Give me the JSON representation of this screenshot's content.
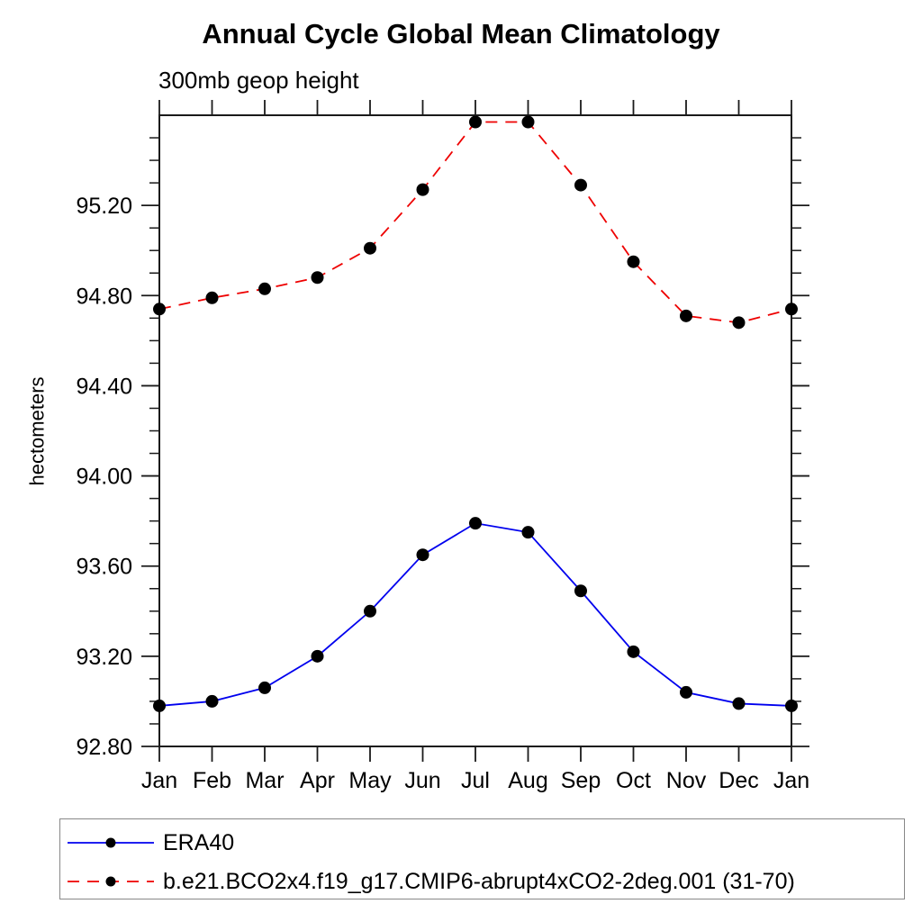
{
  "title": "Annual Cycle Global Mean Climatology",
  "subtitle": "300mb geop height",
  "chart_data": {
    "type": "line",
    "title": "Annual Cycle Global Mean Climatology",
    "subtitle": "300mb geop height",
    "xlabel": "",
    "ylabel": "hectometers",
    "categories": [
      "Jan",
      "Feb",
      "Mar",
      "Apr",
      "May",
      "Jun",
      "Jul",
      "Aug",
      "Sep",
      "Oct",
      "Nov",
      "Dec",
      "Jan"
    ],
    "ylim": [
      92.8,
      95.6
    ],
    "ytick_labels": [
      "92.80",
      "93.20",
      "93.60",
      "94.00",
      "94.40",
      "94.80",
      "95.20"
    ],
    "ytick_values": [
      92.8,
      93.2,
      93.6,
      94.0,
      94.4,
      94.8,
      95.2
    ],
    "minor_tick_interval": 0.1,
    "grid": false,
    "legend_position": "bottom-left box",
    "series": [
      {
        "name": "ERA40",
        "color": "#0000ee",
        "line_style": "solid",
        "marker": "filled-circle",
        "marker_color": "#000000",
        "values": [
          92.98,
          93.0,
          93.06,
          93.2,
          93.4,
          93.65,
          93.79,
          93.75,
          93.49,
          93.22,
          93.04,
          92.99,
          92.98
        ]
      },
      {
        "name": "b.e21.BCO2x4.f19_g17.CMIP6-abrupt4xCO2-2deg.001 (31-70)",
        "color": "#ee0000",
        "line_style": "dashed",
        "marker": "filled-circle",
        "marker_color": "#000000",
        "values": [
          94.74,
          94.79,
          94.83,
          94.88,
          95.01,
          95.27,
          95.57,
          95.57,
          95.29,
          94.95,
          94.71,
          94.68,
          94.74
        ]
      }
    ]
  },
  "colors": {
    "background": "#ffffff",
    "frame": "#1a1a1a",
    "text": "#000000",
    "legend_border": "#888888"
  }
}
